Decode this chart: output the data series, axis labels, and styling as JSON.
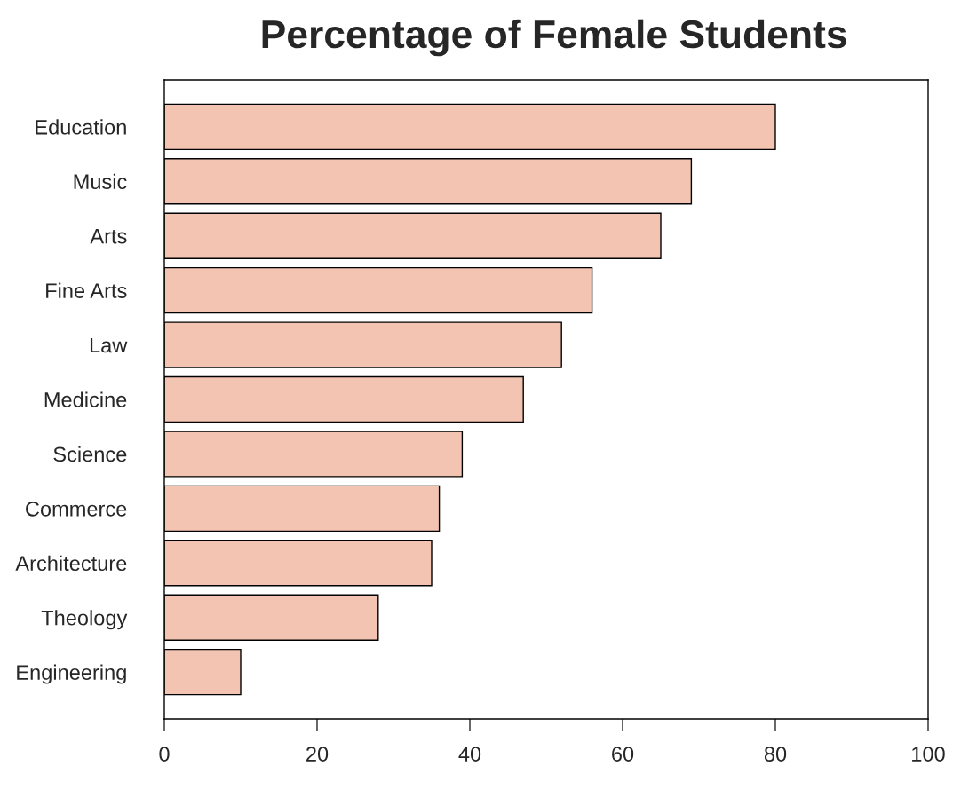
{
  "chart_data": {
    "type": "bar",
    "orientation": "horizontal",
    "title": "Percentage of Female Students",
    "categories": [
      "Education",
      "Music",
      "Arts",
      "Fine Arts",
      "Law",
      "Medicine",
      "Science",
      "Commerce",
      "Architecture",
      "Theology",
      "Engineering"
    ],
    "values": [
      80,
      69,
      65,
      56,
      52,
      47,
      39,
      36,
      35,
      28,
      10
    ],
    "color": "#f4c4b2",
    "xlim": [
      0,
      100
    ],
    "xticks": [
      0,
      20,
      40,
      60,
      80,
      100
    ],
    "grid": false
  }
}
